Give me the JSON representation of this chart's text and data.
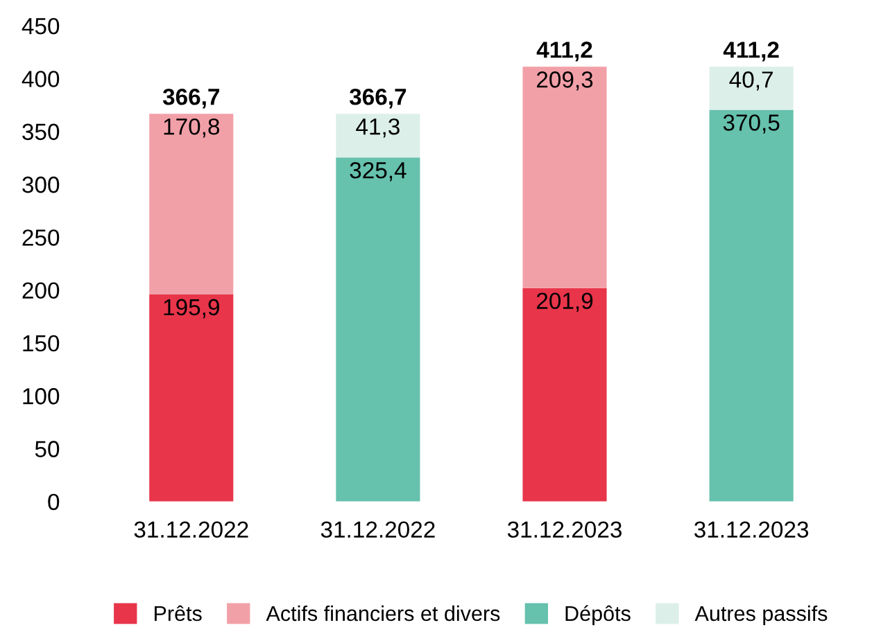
{
  "chart_data": {
    "type": "bar",
    "stacked": true,
    "categories": [
      "31.12.2022",
      "31.12.2022",
      "31.12.2023",
      "31.12.2023"
    ],
    "series": [
      {
        "name": "Prêts",
        "color": "#e8354a",
        "values": [
          195.9,
          null,
          201.9,
          null
        ],
        "value_labels": [
          "195,9",
          null,
          "201,9",
          null
        ]
      },
      {
        "name": "Actifs financiers et divers",
        "color": "#f2a0a8",
        "values": [
          170.8,
          null,
          209.3,
          null
        ],
        "value_labels": [
          "170,8",
          null,
          "209,3",
          null
        ]
      },
      {
        "name": "Dépôts",
        "color": "#66c1ad",
        "values": [
          null,
          325.4,
          null,
          370.5
        ],
        "value_labels": [
          null,
          "325,4",
          null,
          "370,5"
        ]
      },
      {
        "name": "Autres passifs",
        "color": "#dcefe9",
        "values": [
          null,
          41.3,
          null,
          40.7
        ],
        "value_labels": [
          null,
          "41,3",
          null,
          "40,7"
        ]
      }
    ],
    "totals": [
      "366,7",
      "366,7",
      "411,2",
      "411,2"
    ],
    "ylim": [
      0,
      450
    ],
    "yticks": [
      0,
      50,
      100,
      150,
      200,
      250,
      300,
      350,
      400,
      450
    ],
    "grid": false,
    "legend": "bottom"
  }
}
